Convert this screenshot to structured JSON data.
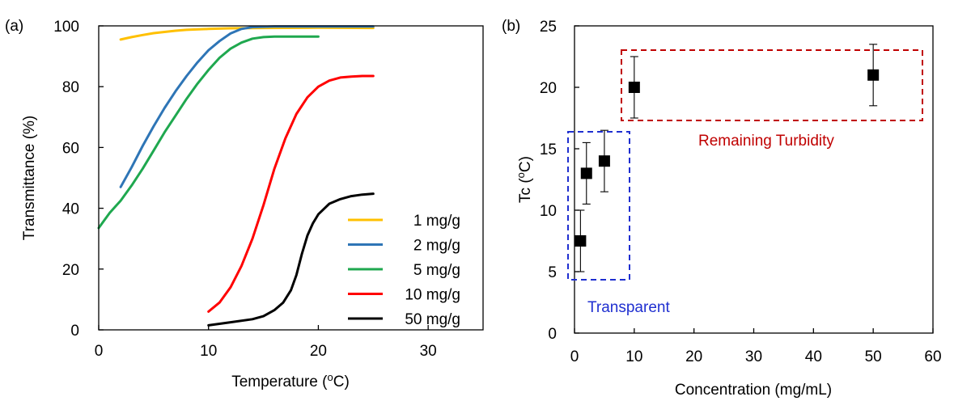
{
  "chart_data": [
    {
      "type": "line",
      "panel_label": "(a)",
      "xlabel": "Temperature (",
      "xlabel_sup": "o",
      "xlabel_unit": "C)",
      "ylabel": "Transmittance (%)",
      "xlim": [
        0,
        35
      ],
      "ylim": [
        0,
        100
      ],
      "x_ticks": [
        "0",
        "10",
        "20",
        "30"
      ],
      "y_ticks": [
        "0",
        "20",
        "40",
        "60",
        "80",
        "100"
      ],
      "legend_position": "right",
      "series": [
        {
          "name": "1 mg/g",
          "color": "#FFC000",
          "x": [
            2,
            3,
            4,
            5,
            6,
            7,
            8,
            10,
            12,
            15,
            20,
            25
          ],
          "y": [
            95.5,
            96.3,
            97,
            97.6,
            98,
            98.4,
            98.7,
            99,
            99.2,
            99.3,
            99.4,
            99.3
          ]
        },
        {
          "name": "2 mg/g",
          "color": "#2E75B6",
          "x": [
            2,
            3,
            4,
            5,
            6,
            7,
            8,
            9,
            10,
            11,
            12,
            13,
            14,
            16,
            20,
            25
          ],
          "y": [
            47,
            53.5,
            60.5,
            67,
            73,
            78.5,
            83.5,
            88,
            92,
            95,
            97.5,
            99,
            99.6,
            99.8,
            99.8,
            99.8
          ]
        },
        {
          "name": "5 mg/g",
          "color": "#1FA84F",
          "x": [
            0,
            1,
            2,
            3,
            4,
            5,
            6,
            7,
            8,
            9,
            10,
            11,
            12,
            13,
            14,
            15,
            16,
            18,
            20
          ],
          "y": [
            33.5,
            38.5,
            42.5,
            47.5,
            53,
            59,
            65,
            70.5,
            76,
            81,
            85.5,
            89.5,
            92.5,
            94.5,
            95.8,
            96.3,
            96.5,
            96.5,
            96.5
          ]
        },
        {
          "name": "10 mg/g",
          "color": "#FF0000",
          "x": [
            10,
            11,
            12,
            13,
            14,
            15,
            16,
            17,
            18,
            19,
            20,
            21,
            22,
            23,
            24,
            25
          ],
          "y": [
            6,
            9,
            14,
            21,
            30,
            41,
            53,
            63,
            71,
            76.5,
            80,
            82,
            83,
            83.3,
            83.5,
            83.5
          ]
        },
        {
          "name": "50 mg/g",
          "color": "#000000",
          "x": [
            10,
            12,
            14,
            15,
            16,
            16.8,
            17.5,
            18,
            18.5,
            19,
            19.5,
            20,
            21,
            22,
            23,
            24,
            25
          ],
          "y": [
            1.5,
            2.5,
            3.5,
            4.5,
            6.5,
            9,
            13,
            18,
            25,
            31,
            35,
            38,
            41.5,
            43,
            44,
            44.5,
            44.8
          ]
        }
      ]
    },
    {
      "type": "scatter",
      "panel_label": "(b)",
      "xlabel": "Concentration (mg/mL)",
      "ylabel": "Tc (",
      "ylabel_sup": "o",
      "ylabel_unit": "C)",
      "xlim": [
        0,
        60
      ],
      "ylim": [
        0,
        25
      ],
      "x_ticks": [
        "0",
        "10",
        "20",
        "30",
        "40",
        "50",
        "60"
      ],
      "y_ticks": [
        "0",
        "5",
        "10",
        "15",
        "20",
        "25"
      ],
      "points": [
        {
          "x": 1,
          "y": 7.5,
          "err": 2.5
        },
        {
          "x": 2,
          "y": 13,
          "err": 2.5
        },
        {
          "x": 5,
          "y": 14,
          "err": 2.5
        },
        {
          "x": 10,
          "y": 20,
          "err": 2.5
        },
        {
          "x": 50,
          "y": 21,
          "err": 2.5
        }
      ],
      "annotations": [
        {
          "text": "Transparent",
          "color": "#1F2FD0"
        },
        {
          "text": "Remaining Turbidity",
          "color": "#C00000"
        }
      ]
    }
  ]
}
